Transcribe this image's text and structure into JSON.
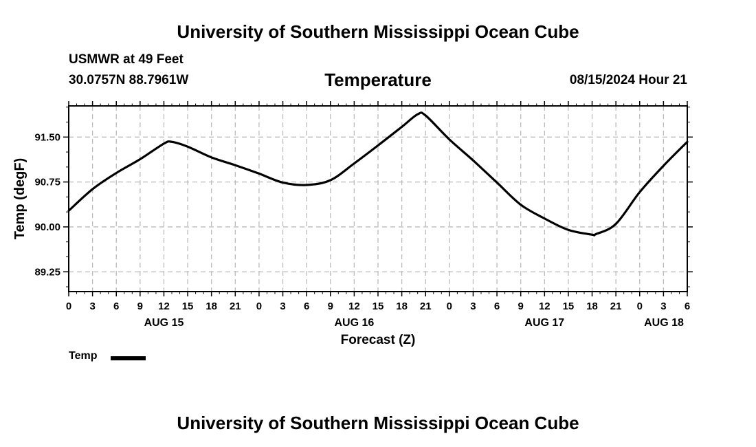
{
  "header": {
    "title": "University of Southern Mississippi Ocean Cube",
    "station": "USMWR at 49 Feet",
    "coords": "30.0757N  88.7961W",
    "variable": "Temperature",
    "run_time": "08/15/2024 Hour 21"
  },
  "footer": {
    "title": "University of Southern Mississippi Ocean Cube"
  },
  "legend": {
    "label": "Temp"
  },
  "colors": {
    "line": "#000000",
    "grid": "#bbbbbb",
    "background": "#ffffff"
  },
  "chart_data": {
    "type": "line",
    "title": "Temperature",
    "xlabel": "Forecast (Z)",
    "ylabel": "Temp (degF)",
    "xlim": [
      0,
      78
    ],
    "ylim": [
      88.92,
      92.02
    ],
    "x_tick_step_hours": 3,
    "x_tick_labels": [
      "0",
      "3",
      "6",
      "9",
      "12",
      "15",
      "18",
      "21",
      "0",
      "3",
      "6",
      "9",
      "12",
      "15",
      "18",
      "21",
      "0",
      "3",
      "6",
      "9",
      "12",
      "15",
      "18",
      "21",
      "0",
      "3",
      "6"
    ],
    "day_labels": [
      {
        "hour": 12,
        "label": "AUG 15"
      },
      {
        "hour": 36,
        "label": "AUG 16"
      },
      {
        "hour": 60,
        "label": "AUG 17"
      },
      {
        "hour": 78,
        "label": "AUG 18"
      }
    ],
    "y_ticks": [
      89.25,
      90.0,
      90.75,
      91.5
    ],
    "y_tick_labels": [
      "89.25",
      "90.00",
      "90.75",
      "91.50"
    ],
    "grid": true,
    "legend_position": "bottom-left",
    "series": [
      {
        "name": "Temp",
        "x": [
          0,
          3,
          6,
          9,
          12,
          13,
          15,
          18,
          21,
          24,
          27,
          30,
          33,
          36,
          39,
          42,
          44,
          45,
          48,
          51,
          54,
          57,
          60,
          63,
          66,
          66.5,
          69,
          72,
          75,
          78
        ],
        "values": [
          90.27,
          90.63,
          90.9,
          91.13,
          91.39,
          91.42,
          91.34,
          91.16,
          91.03,
          90.89,
          90.74,
          90.7,
          90.78,
          91.06,
          91.36,
          91.67,
          91.88,
          91.86,
          91.46,
          91.11,
          90.74,
          90.37,
          90.14,
          89.95,
          89.87,
          89.88,
          90.05,
          90.58,
          91.02,
          91.42
        ]
      }
    ]
  }
}
